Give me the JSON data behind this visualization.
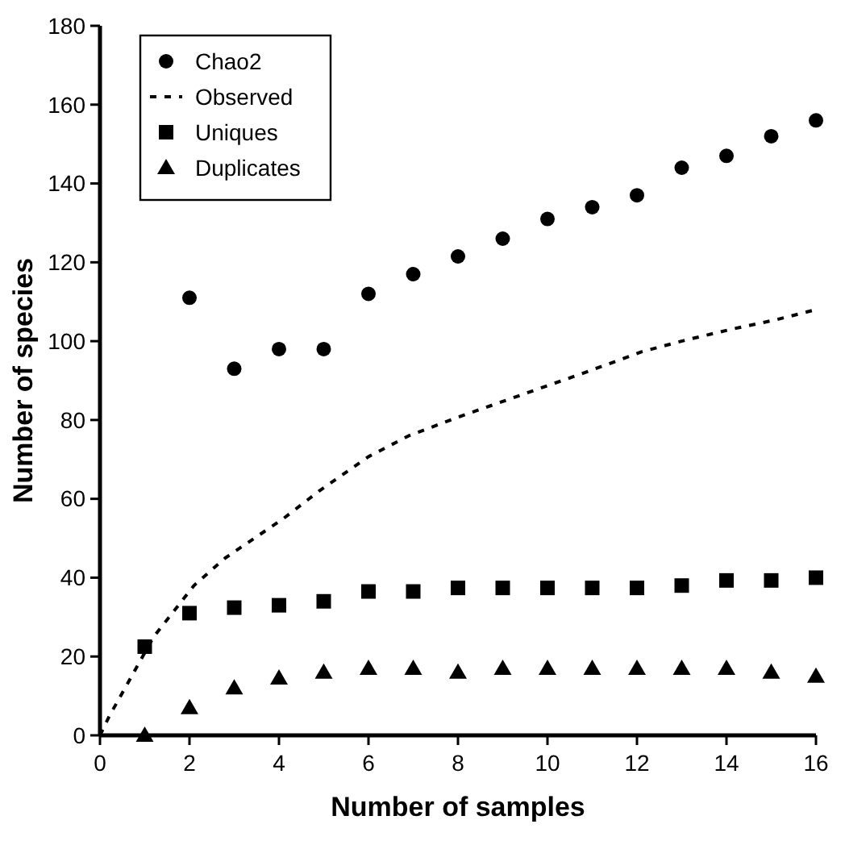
{
  "chart_data": {
    "type": "scatter",
    "xlabel": "Number of samples",
    "ylabel": "Number of species",
    "xlim": [
      0,
      16
    ],
    "xticks": [
      0,
      2,
      4,
      6,
      8,
      10,
      12,
      14,
      16
    ],
    "ylim": [
      0,
      180
    ],
    "yticks": [
      0,
      20,
      40,
      60,
      80,
      100,
      120,
      140,
      160,
      180
    ],
    "grid": false,
    "legend": "top left",
    "series": [
      {
        "name": "Chao2",
        "marker": "circle",
        "color": "#000000",
        "x": [
          2,
          3,
          4,
          5,
          6,
          7,
          8,
          9,
          10,
          11,
          12,
          13,
          14,
          15,
          16
        ],
        "values": [
          111,
          93,
          98,
          98,
          112,
          117,
          121.5,
          126,
          131,
          134,
          137,
          144,
          147,
          152,
          156
        ]
      },
      {
        "name": "Observed",
        "type": "line",
        "marker": "none",
        "line_style": "dashed",
        "color": "#000000",
        "x": [
          0,
          0.2,
          1.2,
          2.1,
          2.8,
          4.1,
          4.9,
          6,
          6.9,
          8,
          9,
          10,
          11,
          12.1,
          13.1,
          14.1,
          15.1,
          16
        ],
        "values": [
          0,
          4.7,
          25,
          38,
          45,
          55,
          62,
          70.7,
          76,
          80.7,
          84.7,
          88.7,
          92.7,
          97.3,
          100.3,
          103,
          105.4,
          108
        ]
      },
      {
        "name": "Uniques",
        "marker": "square",
        "color": "#000000",
        "x": [
          1,
          2,
          3,
          4,
          5,
          6,
          7,
          8,
          9,
          10,
          11,
          12,
          13,
          14,
          15,
          16
        ],
        "values": [
          22.5,
          31,
          32.4,
          33,
          34,
          36.5,
          36.5,
          37.4,
          37.4,
          37.4,
          37.4,
          37.4,
          38,
          39.3,
          39.3,
          40
        ]
      },
      {
        "name": "Duplicates",
        "marker": "triangle",
        "color": "#000000",
        "x": [
          1,
          2,
          3,
          4,
          5,
          6,
          7,
          8,
          9,
          10,
          11,
          12,
          13,
          14,
          15,
          16
        ],
        "values": [
          0,
          7,
          12,
          14.5,
          16,
          17,
          17,
          16,
          17,
          17,
          17,
          17,
          17,
          17,
          16,
          15
        ]
      }
    ]
  }
}
